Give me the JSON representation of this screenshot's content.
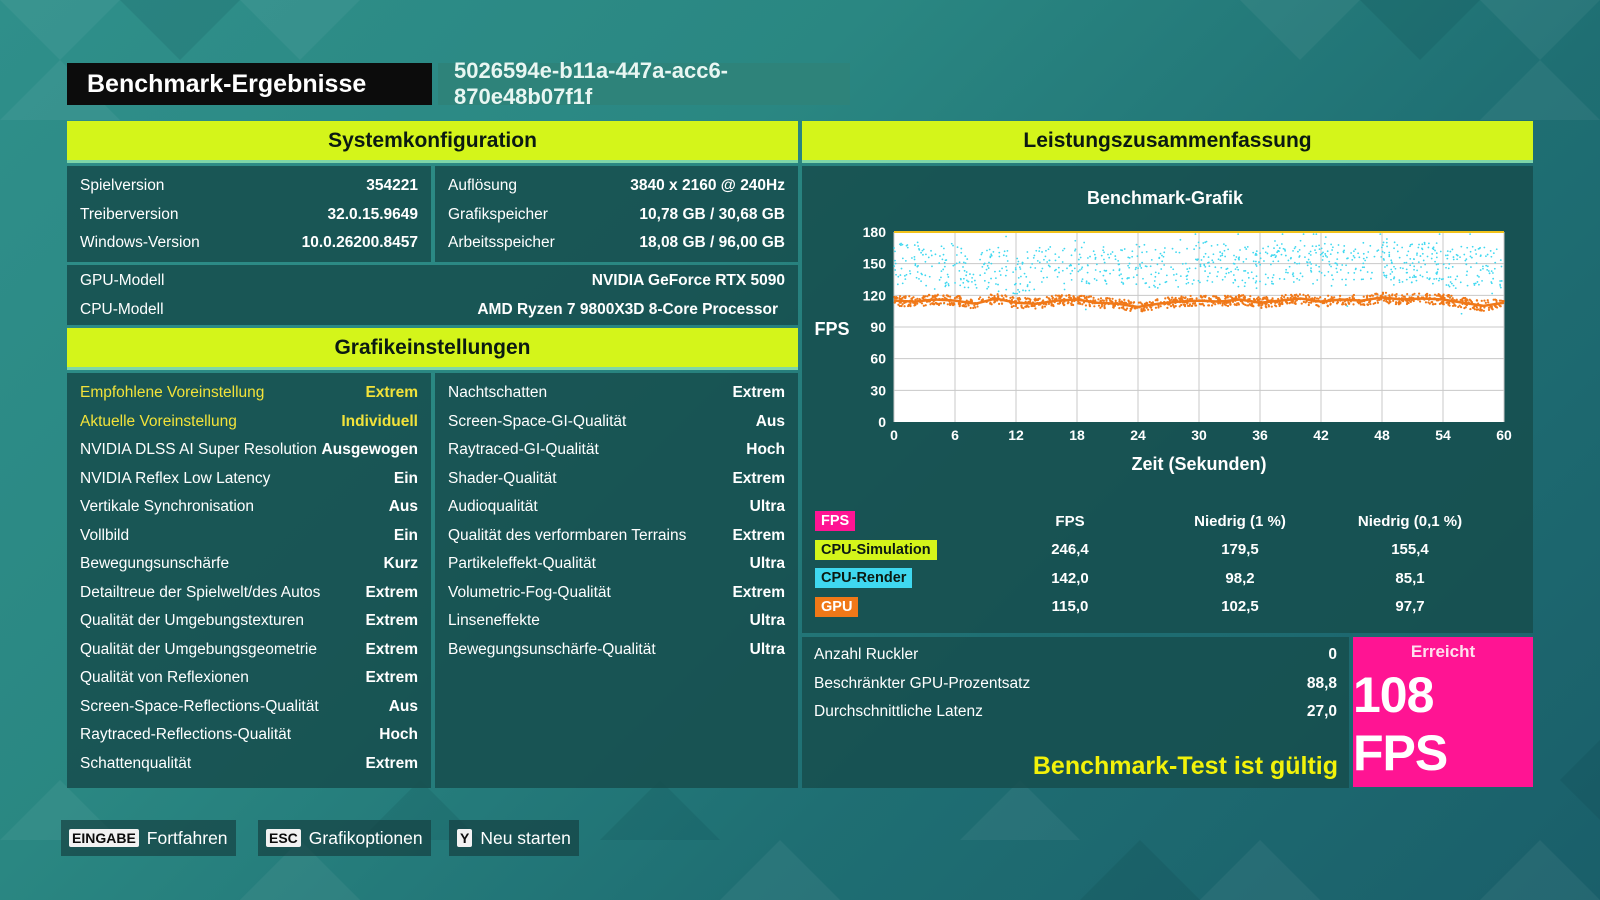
{
  "header": {
    "title": "Benchmark-Ergebnisse",
    "run_id": "5026594e-b11a-447a-acc6-870e48b07f1f"
  },
  "system": {
    "section_title": "Systemkonfiguration",
    "left": [
      {
        "label": "Spielversion",
        "value": "354221"
      },
      {
        "label": "Treiberversion",
        "value": "32.0.15.9649"
      },
      {
        "label": "Windows-Version",
        "value": "10.0.26200.8457"
      }
    ],
    "right": [
      {
        "label": "Auflösung",
        "value": "3840 x 2160 @ 240Hz"
      },
      {
        "label": "Grafikspeicher",
        "value": "10,78 GB / 30,68 GB"
      },
      {
        "label": "Arbeitsspeicher",
        "value": "18,08 GB / 96,00 GB"
      }
    ],
    "hardware": [
      {
        "label": "GPU-Modell",
        "value": "NVIDIA GeForce RTX 5090"
      },
      {
        "label": "CPU-Modell",
        "value": "AMD Ryzen 7 9800X3D 8-Core Processor"
      }
    ]
  },
  "graphics": {
    "section_title": "Grafikeinstellungen",
    "left": [
      {
        "label": "Empfohlene Voreinstellung",
        "value": "Extrem",
        "highlight": true
      },
      {
        "label": "Aktuelle Voreinstellung",
        "value": "Individuell",
        "highlight": true
      },
      {
        "label": "NVIDIA DLSS AI Super Resolution",
        "value": "Ausgewogen"
      },
      {
        "label": "NVIDIA Reflex Low Latency",
        "value": "Ein"
      },
      {
        "label": "Vertikale Synchronisation",
        "value": "Aus"
      },
      {
        "label": "Vollbild",
        "value": "Ein"
      },
      {
        "label": "Bewegungsunschärfe",
        "value": "Kurz"
      },
      {
        "label": "Detailtreue der Spielwelt/des Autos",
        "value": "Extrem"
      },
      {
        "label": "Qualität der Umgebungstexturen",
        "value": "Extrem"
      },
      {
        "label": "Qualität der Umgebungsgeometrie",
        "value": "Extrem"
      },
      {
        "label": "Qualität von Reflexionen",
        "value": "Extrem"
      },
      {
        "label": "Screen-Space-Reflections-Qualität",
        "value": "Aus"
      },
      {
        "label": "Raytraced-Reflections-Qualität",
        "value": "Hoch"
      },
      {
        "label": "Schattenqualität",
        "value": "Extrem"
      }
    ],
    "right": [
      {
        "label": "Nachtschatten",
        "value": "Extrem"
      },
      {
        "label": "Screen-Space-GI-Qualität",
        "value": "Aus"
      },
      {
        "label": "Raytraced-GI-Qualität",
        "value": "Hoch"
      },
      {
        "label": "Shader-Qualität",
        "value": "Extrem"
      },
      {
        "label": "Audioqualität",
        "value": "Ultra"
      },
      {
        "label": "Qualität des verformbaren Terrains",
        "value": "Extrem"
      },
      {
        "label": "Partikeleffekt-Qualität",
        "value": "Ultra"
      },
      {
        "label": "Volumetric-Fog-Qualität",
        "value": "Extrem"
      },
      {
        "label": "Linseneffekte",
        "value": "Ultra"
      },
      {
        "label": "Bewegungsunschärfe-Qualität",
        "value": "Ultra"
      }
    ]
  },
  "performance": {
    "section_title": "Leistungszusammenfassung",
    "table": {
      "header_tag": "FPS",
      "columns": [
        "FPS",
        "Niedrig (1 %)",
        "Niedrig (0,1 %)"
      ],
      "rows": [
        {
          "label": "CPU-Simulation",
          "color": "#d4f51a",
          "text_color": "#0b1a12",
          "values": [
            "246,4",
            "179,5",
            "155,4"
          ]
        },
        {
          "label": "CPU-Render",
          "color": "#3fd8f0",
          "text_color": "#0b1a12",
          "values": [
            "142,0",
            "98,2",
            "85,1"
          ]
        },
        {
          "label": "GPU",
          "color": "#f07818",
          "text_color": "#ffffff",
          "values": [
            "115,0",
            "102,5",
            "97,7"
          ]
        }
      ],
      "header_tag_color": "#ff1493"
    },
    "extra": [
      {
        "label": "Anzahl Ruckler",
        "value": "0"
      },
      {
        "label": "Beschränkter GPU-Prozentsatz",
        "value": "88,8"
      },
      {
        "label": "Durchschnittliche Latenz",
        "value": "27,0"
      }
    ],
    "valid_text": "Benchmark-Test ist gültig",
    "achieved_label": "Erreicht",
    "achieved_value": "108 FPS"
  },
  "chart_data": {
    "type": "scatter",
    "title": "Benchmark-Grafik",
    "xlabel": "Zeit (Sekunden)",
    "ylabel": "FPS",
    "xlim": [
      0,
      60
    ],
    "ylim": [
      0,
      180
    ],
    "xticks": [
      0,
      6,
      12,
      18,
      24,
      30,
      36,
      42,
      48,
      54,
      60
    ],
    "yticks": [
      30,
      60,
      90,
      120,
      150,
      180
    ],
    "grid": true,
    "series": [
      {
        "name": "CPU-Simulation",
        "color": "#f2c21a",
        "kind": "line",
        "points": [
          [
            0,
            180
          ],
          [
            60,
            180
          ]
        ]
      },
      {
        "name": "CPU-Render",
        "color": "#3fd8f0",
        "kind": "scatter",
        "points": [
          [
            0,
            148
          ],
          [
            2,
            152
          ],
          [
            4,
            145
          ],
          [
            6,
            150
          ],
          [
            8,
            142
          ],
          [
            10,
            148
          ],
          [
            12,
            140
          ],
          [
            14,
            146
          ],
          [
            16,
            150
          ],
          [
            18,
            152
          ],
          [
            20,
            148
          ],
          [
            22,
            146
          ],
          [
            24,
            150
          ],
          [
            26,
            145
          ],
          [
            28,
            148
          ],
          [
            30,
            152
          ],
          [
            32,
            150
          ],
          [
            34,
            148
          ],
          [
            36,
            146
          ],
          [
            38,
            150
          ],
          [
            40,
            152
          ],
          [
            42,
            150
          ],
          [
            44,
            148
          ],
          [
            46,
            152
          ],
          [
            48,
            155
          ],
          [
            50,
            150
          ],
          [
            52,
            152
          ],
          [
            54,
            148
          ],
          [
            56,
            146
          ],
          [
            58,
            150
          ],
          [
            60,
            145
          ]
        ]
      },
      {
        "name": "GPU",
        "color": "#f07818",
        "kind": "line",
        "points": [
          [
            0,
            115
          ],
          [
            2,
            114
          ],
          [
            4,
            116
          ],
          [
            6,
            115
          ],
          [
            8,
            112
          ],
          [
            10,
            117
          ],
          [
            12,
            113
          ],
          [
            14,
            112
          ],
          [
            16,
            115
          ],
          [
            18,
            116
          ],
          [
            20,
            113
          ],
          [
            22,
            112
          ],
          [
            24,
            109
          ],
          [
            26,
            112
          ],
          [
            28,
            114
          ],
          [
            30,
            115
          ],
          [
            32,
            114
          ],
          [
            34,
            116
          ],
          [
            36,
            113
          ],
          [
            38,
            115
          ],
          [
            40,
            117
          ],
          [
            42,
            114
          ],
          [
            44,
            116
          ],
          [
            46,
            115
          ],
          [
            48,
            118
          ],
          [
            50,
            116
          ],
          [
            52,
            117
          ],
          [
            54,
            116
          ],
          [
            56,
            113
          ],
          [
            58,
            110
          ],
          [
            60,
            113
          ]
        ]
      }
    ]
  },
  "footer": [
    {
      "key": "EINGABE",
      "label": "Fortfahren"
    },
    {
      "key": "ESC",
      "label": "Grafikoptionen"
    },
    {
      "key": "Y",
      "label": "Neu starten"
    }
  ]
}
